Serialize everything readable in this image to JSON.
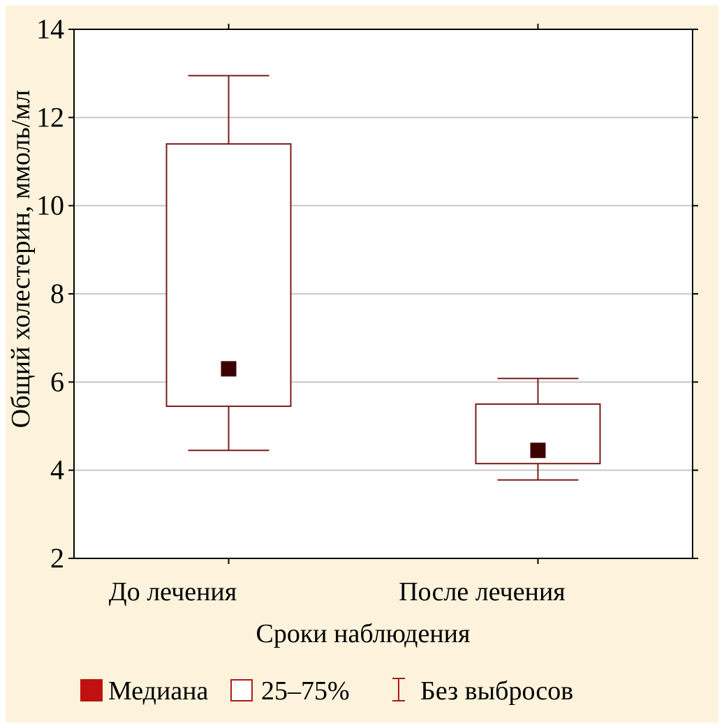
{
  "chart_data": {
    "type": "box",
    "xlabel": "Сроки наблюдения",
    "ylabel": "Общий холестерин, ммоль/мл",
    "ylim": [
      2,
      14
    ],
    "yticks": [
      2,
      4,
      6,
      8,
      10,
      12,
      14
    ],
    "grid": true,
    "categories": [
      "До лечения",
      "После лечения"
    ],
    "boxes": [
      {
        "category": "До лечения",
        "median": 6.3,
        "q1": 5.45,
        "q3": 11.4,
        "min": 4.45,
        "max": 12.95
      },
      {
        "category": "После лечения",
        "median": 4.45,
        "q1": 4.15,
        "q3": 5.5,
        "min": 3.78,
        "max": 6.08
      }
    ],
    "legend": {
      "placement": "bottom",
      "items": [
        {
          "label": "Медиана",
          "symbol": "filled-square"
        },
        {
          "label": "25–75%",
          "symbol": "open-square"
        },
        {
          "label": "Без выбросов",
          "symbol": "whisker"
        }
      ]
    },
    "colors": {
      "box_stroke": "#7a1a1a",
      "median_fill": "#3d0000",
      "legend_median": "#c01010",
      "legend_stroke": "#b01818",
      "grid": "#c8c8c8",
      "background": "#fdf3dc",
      "plot_background": "#ffffff"
    }
  }
}
